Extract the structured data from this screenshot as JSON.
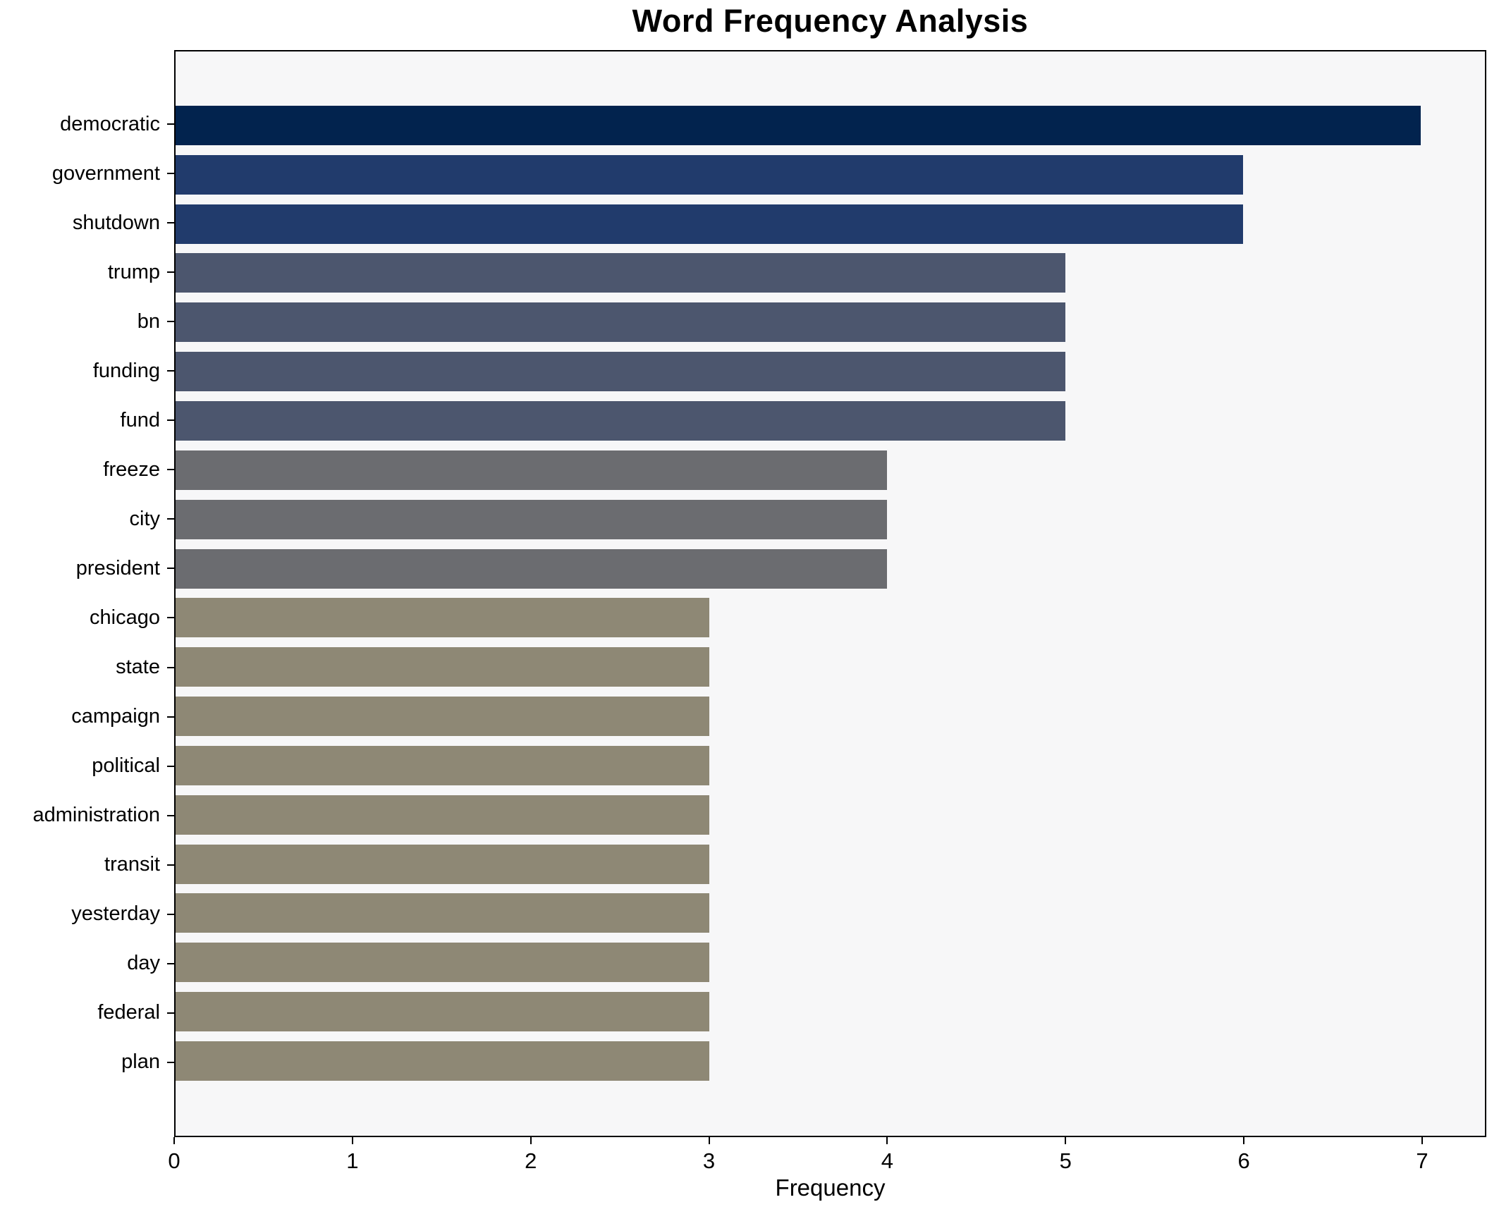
{
  "page": {
    "background": "#ffffff"
  },
  "chart_data": {
    "type": "bar",
    "orientation": "horizontal",
    "title": "Word Frequency Analysis",
    "xlabel": "Frequency",
    "ylabel": "",
    "categories": [
      "democratic",
      "government",
      "shutdown",
      "trump",
      "bn",
      "funding",
      "fund",
      "freeze",
      "city",
      "president",
      "chicago",
      "state",
      "campaign",
      "political",
      "administration",
      "transit",
      "yesterday",
      "day",
      "federal",
      "plan"
    ],
    "values": [
      7,
      6,
      6,
      5,
      5,
      5,
      5,
      4,
      4,
      4,
      3,
      3,
      3,
      3,
      3,
      3,
      3,
      3,
      3,
      3
    ],
    "bar_colors": [
      "#02234e",
      "#213b6c",
      "#213b6c",
      "#4c566e",
      "#4c566e",
      "#4c566e",
      "#4c566e",
      "#6b6c70",
      "#6b6c70",
      "#6b6c70",
      "#8e8875",
      "#8e8875",
      "#8e8875",
      "#8e8875",
      "#8e8875",
      "#8e8875",
      "#8e8875",
      "#8e8875",
      "#8e8875",
      "#8e8875"
    ],
    "xticks": [
      0,
      1,
      2,
      3,
      4,
      5,
      6,
      7
    ],
    "xlim": [
      0,
      7.36
    ],
    "grid": false,
    "legend_position": "none",
    "plot_background": "#f7f7f8",
    "axis_color": "#000000",
    "bar_height_fraction": 0.8
  }
}
